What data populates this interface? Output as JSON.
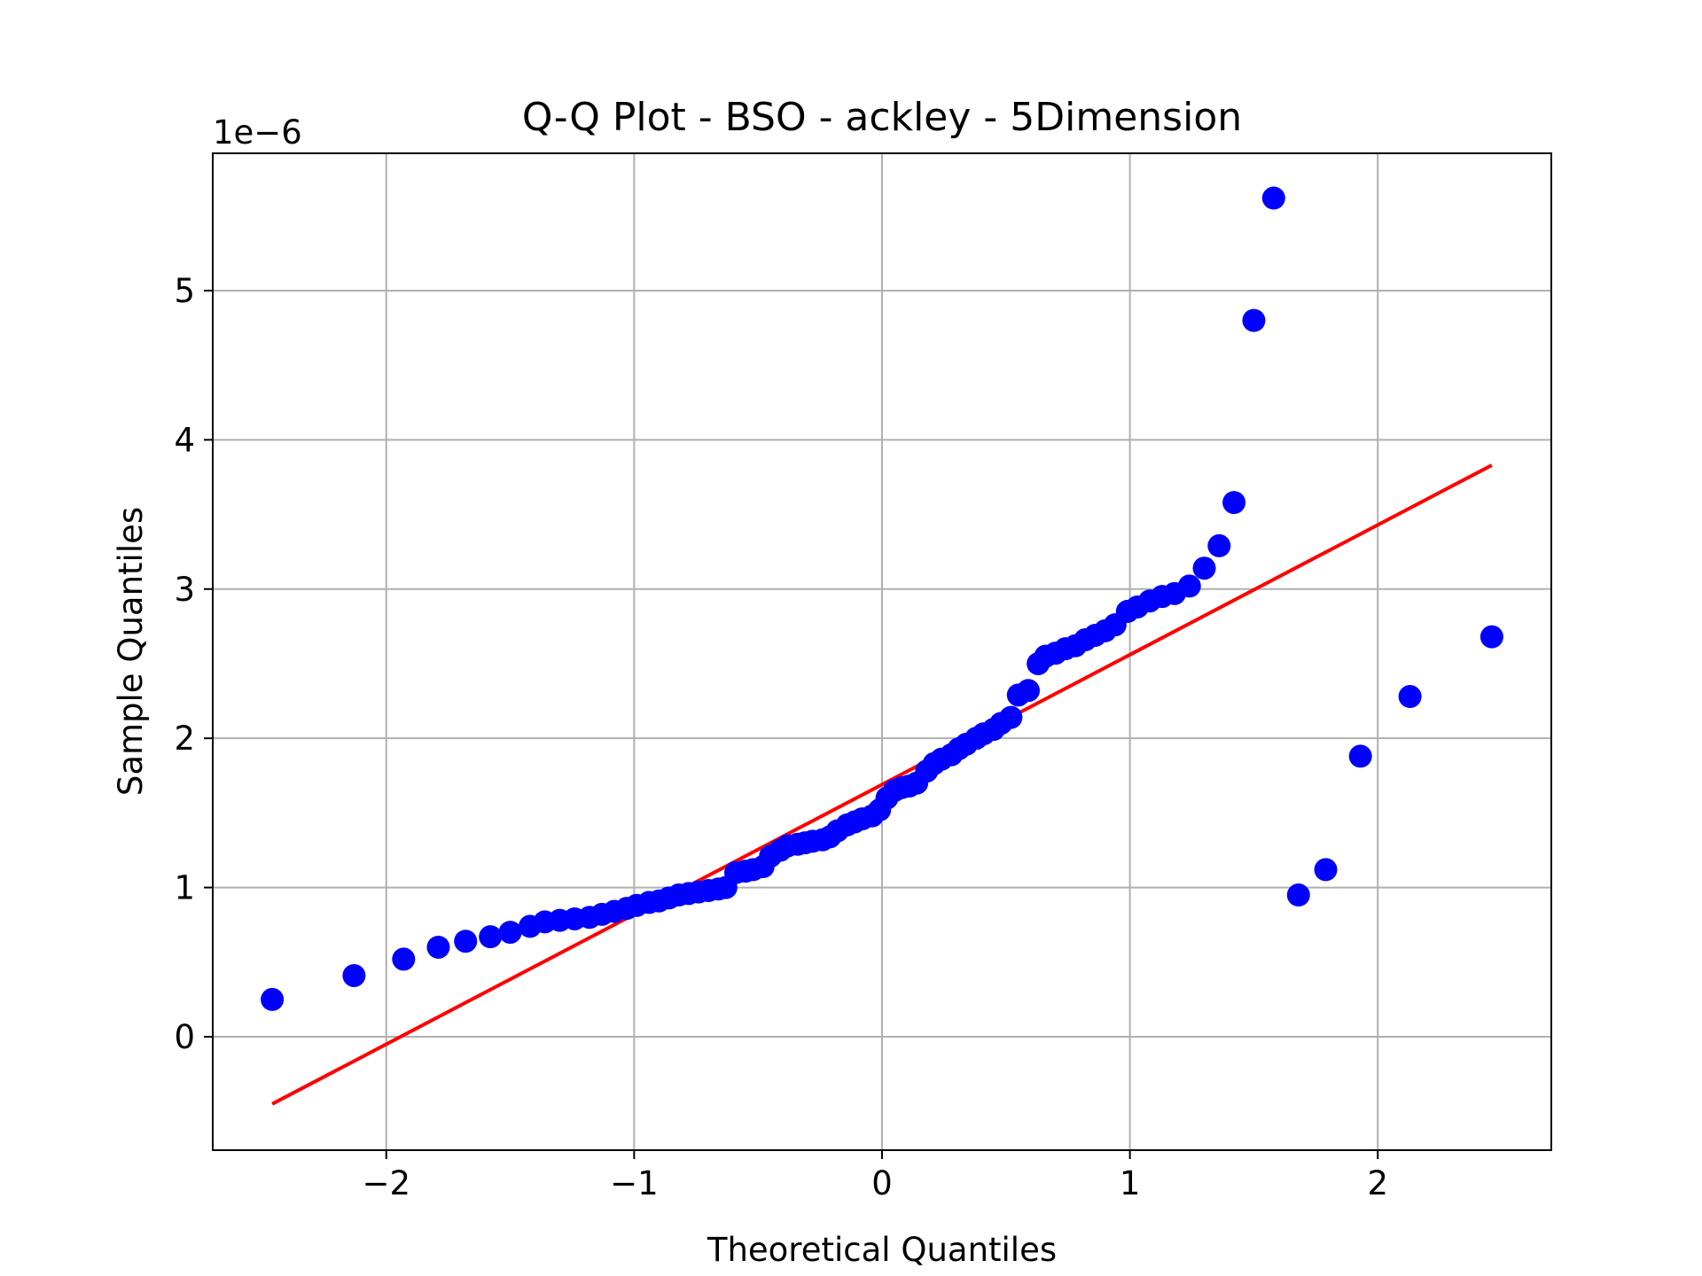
{
  "chart_data": {
    "type": "scatter",
    "title": "Q-Q Plot - BSO - ackley - 5Dimension",
    "xlabel": "Theoretical Quantiles",
    "ylabel": "Sample Quantiles",
    "y_offset_label": "1e−6",
    "xlim": [
      -2.7,
      2.7
    ],
    "ylim": [
      -0.76,
      5.92
    ],
    "xticks": [
      -2,
      -1,
      0,
      1,
      2
    ],
    "xtick_labels": [
      "−2",
      "−1",
      "0",
      "1",
      "2"
    ],
    "yticks": [
      0,
      1,
      2,
      3,
      4,
      5
    ],
    "ytick_labels": [
      "0",
      "1",
      "2",
      "3",
      "4",
      "5"
    ],
    "grid": true,
    "legend": "none",
    "marker_color": "#0000ff",
    "line_color": "#ff0000",
    "reference_line": {
      "x": [
        -2.46,
        2.46
      ],
      "y": [
        -0.45,
        3.83
      ]
    },
    "points": {
      "x": [
        -2.46,
        -2.13,
        -1.93,
        -1.79,
        -1.68,
        -1.58,
        -1.5,
        -1.42,
        -1.36,
        -1.3,
        -1.24,
        -1.18,
        -1.13,
        -1.08,
        -1.03,
        -0.99,
        -0.94,
        -0.9,
        -0.86,
        -0.82,
        -0.78,
        -0.74,
        -0.7,
        -0.66,
        -0.63,
        -0.59,
        -0.55,
        -0.52,
        -0.48,
        -0.45,
        -0.41,
        -0.38,
        -0.34,
        -0.31,
        -0.28,
        -0.24,
        -0.21,
        -0.18,
        -0.14,
        -0.11,
        -0.08,
        -0.04,
        -0.01,
        0.02,
        0.05,
        0.08,
        0.11,
        0.14,
        0.18,
        0.21,
        0.24,
        0.28,
        0.31,
        0.34,
        0.38,
        0.41,
        0.45,
        0.48,
        0.52,
        0.55,
        0.59,
        0.63,
        0.66,
        0.7,
        0.74,
        0.78,
        0.82,
        0.86,
        0.9,
        0.94,
        0.99,
        1.03,
        1.08,
        1.13,
        1.18,
        1.24,
        1.3,
        1.36,
        1.42,
        1.5,
        1.58,
        1.68,
        1.79,
        1.93,
        2.13,
        2.46
      ],
      "y": [
        0.25,
        0.41,
        0.52,
        0.6,
        0.64,
        0.67,
        0.7,
        0.74,
        0.77,
        0.78,
        0.79,
        0.8,
        0.82,
        0.84,
        0.86,
        0.88,
        0.9,
        0.91,
        0.93,
        0.95,
        0.96,
        0.97,
        0.98,
        0.99,
        1.0,
        1.1,
        1.11,
        1.12,
        1.14,
        1.21,
        1.25,
        1.28,
        1.29,
        1.3,
        1.31,
        1.32,
        1.34,
        1.38,
        1.42,
        1.44,
        1.46,
        1.48,
        1.52,
        1.6,
        1.65,
        1.67,
        1.68,
        1.7,
        1.78,
        1.83,
        1.86,
        1.89,
        1.93,
        1.96,
        2.0,
        2.03,
        2.06,
        2.1,
        2.14,
        2.29,
        2.32,
        2.5,
        2.55,
        2.57,
        2.6,
        2.62,
        2.66,
        2.69,
        2.72,
        2.76,
        2.85,
        2.88,
        2.92,
        2.95,
        2.97,
        3.02,
        3.14,
        3.29,
        3.58,
        4.8,
        5.62,
        0.95,
        1.12,
        1.88,
        2.28,
        2.68
      ]
    }
  }
}
